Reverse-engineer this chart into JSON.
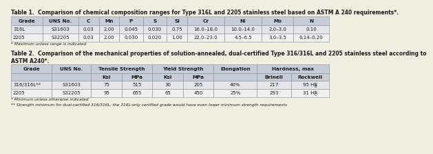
{
  "table1_title": "Table 1.  Comparison of chemical composition ranges for Type 316L and 2205 stainless steel based on ASTM A 240 requirements*.",
  "table1_headers": [
    "Grade",
    "UNS No.",
    "C",
    "Mn",
    "P",
    "S",
    "Si",
    "Cr",
    "Ni",
    "Mo",
    "N"
  ],
  "table1_rows": [
    [
      "316L",
      "S31603",
      "0.03",
      "2.00",
      "0.045",
      "0.030",
      "0.75",
      "16.0–18.0",
      "10.0–14.0",
      "2.0–3.0",
      "0.10"
    ],
    [
      "2205",
      "S32205",
      "0.03",
      "2.00",
      "0.030",
      "0.020",
      "1.00",
      "22.0–23.0",
      "4.5–6.5",
      "3.0–3.5",
      "0.14–0.20"
    ]
  ],
  "table1_footnote": "* Maximum unless range is indicated",
  "table2_title": "Table 2.  Comparison of the mechanical properties of solution-annealed, dual-certified Type 316/316L and 2205 stainless steel according to\nASTM A240*.",
  "table2_top_hdrs": [
    {
      "label": "Grade",
      "cols": [
        0
      ]
    },
    {
      "label": "UNS No.",
      "cols": [
        1
      ]
    },
    {
      "label": "Tensile Strength",
      "cols": [
        2,
        3
      ]
    },
    {
      "label": "Yield Strength",
      "cols": [
        4,
        5
      ]
    },
    {
      "label": "Elongation",
      "cols": [
        6
      ]
    },
    {
      "label": "Hardness, max",
      "cols": [
        7,
        8
      ]
    }
  ],
  "table2_sub_hdrs": [
    "",
    "",
    "Ksi",
    "MPa",
    "Ksi",
    "MPa",
    "",
    "Brinell",
    "Rockwell"
  ],
  "table2_rows": [
    [
      "316/316L**",
      "S31603",
      "75",
      "515",
      "30",
      "205",
      "40%",
      "217",
      "95 HR_B"
    ],
    [
      "2205",
      "S32205",
      "95",
      "655",
      "65",
      "450",
      "25%",
      "293",
      "31 HR_C"
    ]
  ],
  "table2_footnote1": "* Minimum unless otherwise indicated",
  "table2_footnote2": "** Strength minimum for dual-certified 316/316L; the 316L-only certified grade would have even lower minimum strength requirements",
  "header_bg": "#c5cdd8",
  "row_bg0": "#e2e6ea",
  "row_bg1": "#eef0f2",
  "bg_color": "#f2eedf",
  "text_color": "#1a1a1a",
  "border_color": "#8a8a8a",
  "title_fs": 5.5,
  "header_fs": 5.2,
  "cell_fs": 5.0,
  "foot_fs": 4.2,
  "t1_col_weights": [
    0.7,
    0.78,
    0.45,
    0.45,
    0.52,
    0.52,
    0.45,
    0.82,
    0.82,
    0.7,
    0.78
  ],
  "t2_col_weights": [
    0.9,
    0.88,
    0.68,
    0.68,
    0.68,
    0.68,
    0.96,
    0.76,
    0.84
  ]
}
